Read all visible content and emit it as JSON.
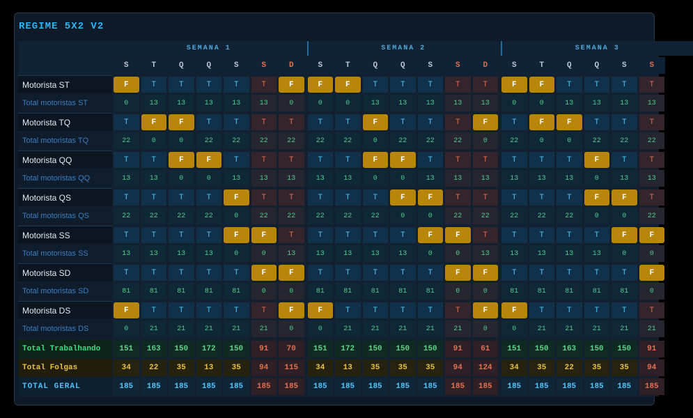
{
  "header": {
    "title": "REGIME 5X2 V2"
  },
  "weeks": [
    "SEMANA 1",
    "SEMANA 2",
    "SEMANA 3"
  ],
  "days": [
    "S",
    "T",
    "Q",
    "Q",
    "S",
    "S",
    "D",
    "S",
    "T",
    "Q",
    "Q",
    "S",
    "S",
    "D",
    "S",
    "T",
    "Q",
    "Q",
    "S",
    "S"
  ],
  "drivers": [
    {
      "name": "Motorista ST",
      "schedule": [
        "F",
        "T",
        "T",
        "T",
        "T",
        "T",
        "F",
        "F",
        "F",
        "T",
        "T",
        "T",
        "T",
        "T",
        "F",
        "F",
        "T",
        "T",
        "T",
        "T"
      ],
      "total_label": "Total motoristas ST",
      "totals": [
        0,
        13,
        13,
        13,
        13,
        13,
        0,
        0,
        0,
        13,
        13,
        13,
        13,
        13,
        0,
        0,
        13,
        13,
        13,
        13
      ]
    },
    {
      "name": "Motorista TQ",
      "schedule": [
        "T",
        "F",
        "F",
        "T",
        "T",
        "T",
        "T",
        "T",
        "T",
        "F",
        "T",
        "T",
        "T",
        "F",
        "T",
        "F",
        "F",
        "T",
        "T",
        "T"
      ],
      "total_label": "Total motoristas TQ",
      "totals": [
        22,
        0,
        0,
        22,
        22,
        22,
        22,
        22,
        22,
        0,
        22,
        22,
        22,
        0,
        22,
        0,
        0,
        22,
        22,
        22
      ]
    },
    {
      "name": "Motorista QQ",
      "schedule": [
        "T",
        "T",
        "F",
        "F",
        "T",
        "T",
        "T",
        "T",
        "T",
        "F",
        "F",
        "T",
        "T",
        "T",
        "T",
        "T",
        "T",
        "F",
        "T",
        "T"
      ],
      "total_label": "Total motoristas QQ",
      "totals": [
        13,
        13,
        0,
        0,
        13,
        13,
        13,
        13,
        13,
        0,
        0,
        13,
        13,
        13,
        13,
        13,
        13,
        0,
        13,
        13
      ]
    },
    {
      "name": "Motorista QS",
      "schedule": [
        "T",
        "T",
        "T",
        "T",
        "F",
        "T",
        "T",
        "T",
        "T",
        "T",
        "F",
        "F",
        "T",
        "T",
        "T",
        "T",
        "T",
        "F",
        "F",
        "T"
      ],
      "total_label": "Total motoristas QS",
      "totals": [
        22,
        22,
        22,
        22,
        0,
        22,
        22,
        22,
        22,
        22,
        0,
        0,
        22,
        22,
        22,
        22,
        22,
        0,
        0,
        22
      ]
    },
    {
      "name": "Motorista SS",
      "schedule": [
        "T",
        "T",
        "T",
        "T",
        "F",
        "F",
        "T",
        "T",
        "T",
        "T",
        "T",
        "F",
        "F",
        "T",
        "T",
        "T",
        "T",
        "T",
        "F",
        "F"
      ],
      "total_label": "Total motoristas SS",
      "totals": [
        13,
        13,
        13,
        13,
        0,
        0,
        13,
        13,
        13,
        13,
        13,
        0,
        0,
        13,
        13,
        13,
        13,
        13,
        0,
        0
      ]
    },
    {
      "name": "Motorista SD",
      "schedule": [
        "T",
        "T",
        "T",
        "T",
        "T",
        "F",
        "F",
        "T",
        "T",
        "T",
        "T",
        "T",
        "F",
        "F",
        "T",
        "T",
        "T",
        "T",
        "T",
        "F"
      ],
      "total_label": "Total motoristas SD",
      "totals": [
        81,
        81,
        81,
        81,
        81,
        0,
        0,
        81,
        81,
        81,
        81,
        81,
        0,
        0,
        81,
        81,
        81,
        81,
        81,
        0
      ]
    },
    {
      "name": "Motorista DS",
      "schedule": [
        "F",
        "T",
        "T",
        "T",
        "T",
        "T",
        "F",
        "F",
        "T",
        "T",
        "T",
        "T",
        "T",
        "F",
        "F",
        "T",
        "T",
        "T",
        "T",
        "T"
      ],
      "total_label": "Total motoristas DS",
      "totals": [
        0,
        21,
        21,
        21,
        21,
        21,
        0,
        0,
        21,
        21,
        21,
        21,
        21,
        0,
        0,
        21,
        21,
        21,
        21,
        21
      ]
    }
  ],
  "summary": [
    {
      "label": "Total Trabalhando",
      "values": [
        151,
        163,
        150,
        172,
        150,
        91,
        70,
        151,
        172,
        150,
        150,
        150,
        91,
        61,
        151,
        150,
        163,
        150,
        150,
        91
      ]
    },
    {
      "label": "Total Folgas",
      "values": [
        34,
        22,
        35,
        13,
        35,
        94,
        115,
        34,
        13,
        35,
        35,
        35,
        94,
        124,
        34,
        35,
        22,
        35,
        35,
        94
      ]
    },
    {
      "label": "TOTAL GERAL",
      "values": [
        185,
        185,
        185,
        185,
        185,
        185,
        185,
        185,
        185,
        185,
        185,
        185,
        185,
        185,
        185,
        185,
        185,
        185,
        185,
        185
      ]
    }
  ]
}
